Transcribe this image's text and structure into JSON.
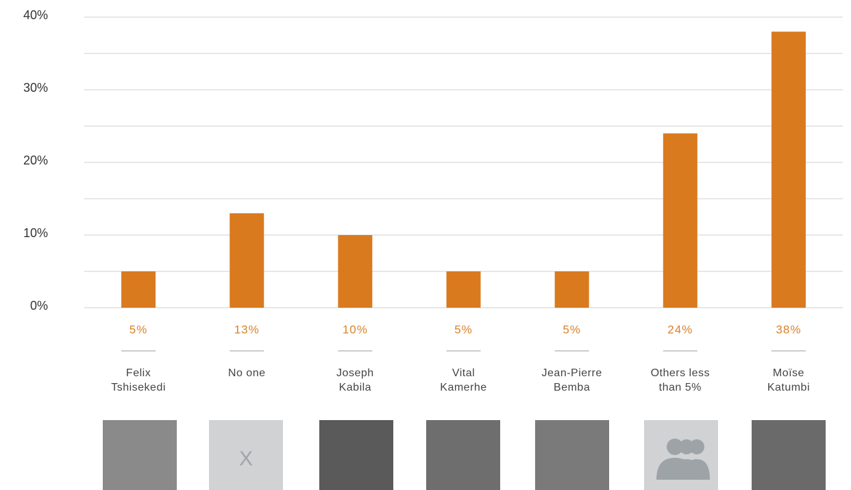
{
  "chart_data": {
    "type": "bar",
    "categories": [
      "Felix Tshisekedi",
      "No one",
      "Joseph Kabila",
      "Vital Kamerhe",
      "Jean-Pierre Bemba",
      "Others less than 5%",
      "Moïse Katumbi"
    ],
    "values": [
      5,
      13,
      10,
      5,
      5,
      24,
      38
    ],
    "value_labels": [
      "5%",
      "13%",
      "10%",
      "5%",
      "5%",
      "24%",
      "38%"
    ],
    "color": "#d97a1f",
    "ylim": [
      0,
      40
    ],
    "yticks": [
      {
        "value": 0,
        "label": "0%"
      },
      {
        "value": 10,
        "label": "10%"
      },
      {
        "value": 20,
        "label": "20%"
      },
      {
        "value": 30,
        "label": "30%"
      },
      {
        "value": 40,
        "label": "40%"
      }
    ],
    "minor_yticks": [
      5,
      15,
      25,
      35
    ],
    "grid": true,
    "placeholder_text": "X"
  }
}
